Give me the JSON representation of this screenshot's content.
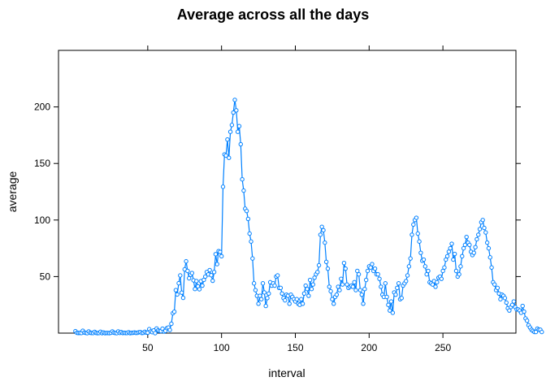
{
  "chart_data": {
    "type": "line",
    "title": "Average across all the days",
    "xlabel": "interval",
    "ylabel": "average",
    "xlim": [
      1,
      288
    ],
    "ylim": [
      0,
      250
    ],
    "x_ticks": [
      50,
      100,
      150,
      200,
      250
    ],
    "y_ticks": [
      50,
      100,
      150,
      200
    ],
    "grid": false,
    "markers": "open-circle",
    "series_color": "#0080ff",
    "series": [
      {
        "values": [
          1.7,
          0.3,
          0.1,
          0.2,
          0.1,
          2.1,
          0.5,
          0.2,
          0,
          1.5,
          0.3,
          0.1,
          0.1,
          1.1,
          0.2,
          0,
          0.1,
          1.2,
          0,
          0.6,
          0,
          0.1,
          0.1,
          0,
          0.3,
          1.5,
          0.4,
          0.1,
          0,
          1.5,
          0.2,
          0.9,
          0.1,
          0.3,
          0.1,
          0.1,
          0.8,
          0,
          0.2,
          0.3,
          0.6,
          0.2,
          0.3,
          0.8,
          0.9,
          0.1,
          0.3,
          1.2,
          0.5,
          0.4,
          3.5,
          1.5,
          0.9,
          2.4,
          0,
          4.1,
          2.4,
          1.9,
          1.7,
          3.9,
          1.4,
          2,
          4.4,
          5,
          2.8,
          8.3,
          17.6,
          18.9,
          38,
          34.2,
          44.1,
          51,
          35.8,
          31.2,
          56.4,
          63.5,
          55,
          48.5,
          51.5,
          53.1,
          46.7,
          39,
          46,
          41.3,
          38.8,
          45.9,
          42,
          47.1,
          50,
          54,
          51.9,
          55.7,
          51.2,
          46.3,
          54,
          69.8,
          61,
          72.5,
          71.8,
          68,
          129.4,
          158,
          157,
          171.2,
          155,
          178,
          184,
          195,
          206.2,
          197,
          178,
          183,
          167,
          136,
          126,
          110,
          108,
          101,
          88,
          81,
          66,
          44,
          38,
          33,
          26,
          33,
          30,
          44,
          36,
          24,
          31,
          35,
          45,
          42,
          44,
          42,
          50,
          51,
          40,
          40,
          35,
          31,
          29,
          34,
          33,
          26,
          34,
          32,
          30,
          28,
          30,
          26,
          25,
          30,
          26,
          35,
          42,
          39,
          33,
          47,
          39,
          43,
          49,
          52,
          54,
          60,
          87,
          94,
          91,
          80,
          63,
          57,
          41,
          37,
          30,
          26,
          32,
          34,
          41,
          38,
          48,
          43,
          62,
          57,
          43,
          40,
          41,
          42,
          41,
          45,
          38,
          55,
          52,
          38,
          34,
          26,
          39,
          47,
          55,
          59,
          58,
          61,
          55,
          57,
          52,
          52,
          48,
          41,
          34,
          32,
          44,
          32,
          25,
          20,
          28,
          18,
          36,
          34,
          40,
          44,
          30,
          31,
          42,
          44,
          46,
          51,
          59,
          66,
          87,
          96,
          100,
          102,
          88,
          81,
          71,
          64,
          65,
          59,
          52,
          55,
          45,
          44,
          43,
          46,
          41,
          45,
          49,
          50,
          48,
          55,
          58,
          65,
          68,
          72,
          75,
          79,
          65,
          70,
          55,
          50,
          52,
          59,
          68,
          75,
          78,
          85,
          80,
          78,
          72,
          69,
          71,
          76,
          83,
          87,
          92,
          98,
          100,
          93,
          89,
          80,
          75,
          67,
          58,
          45,
          43,
          38,
          40,
          35,
          30,
          34,
          33,
          31,
          27,
          22,
          20,
          23,
          25,
          28,
          23,
          21,
          21,
          20,
          18,
          24,
          19,
          13,
          11,
          7,
          5,
          3,
          2,
          1,
          1,
          4,
          3,
          3,
          1
        ]
      }
    ]
  }
}
